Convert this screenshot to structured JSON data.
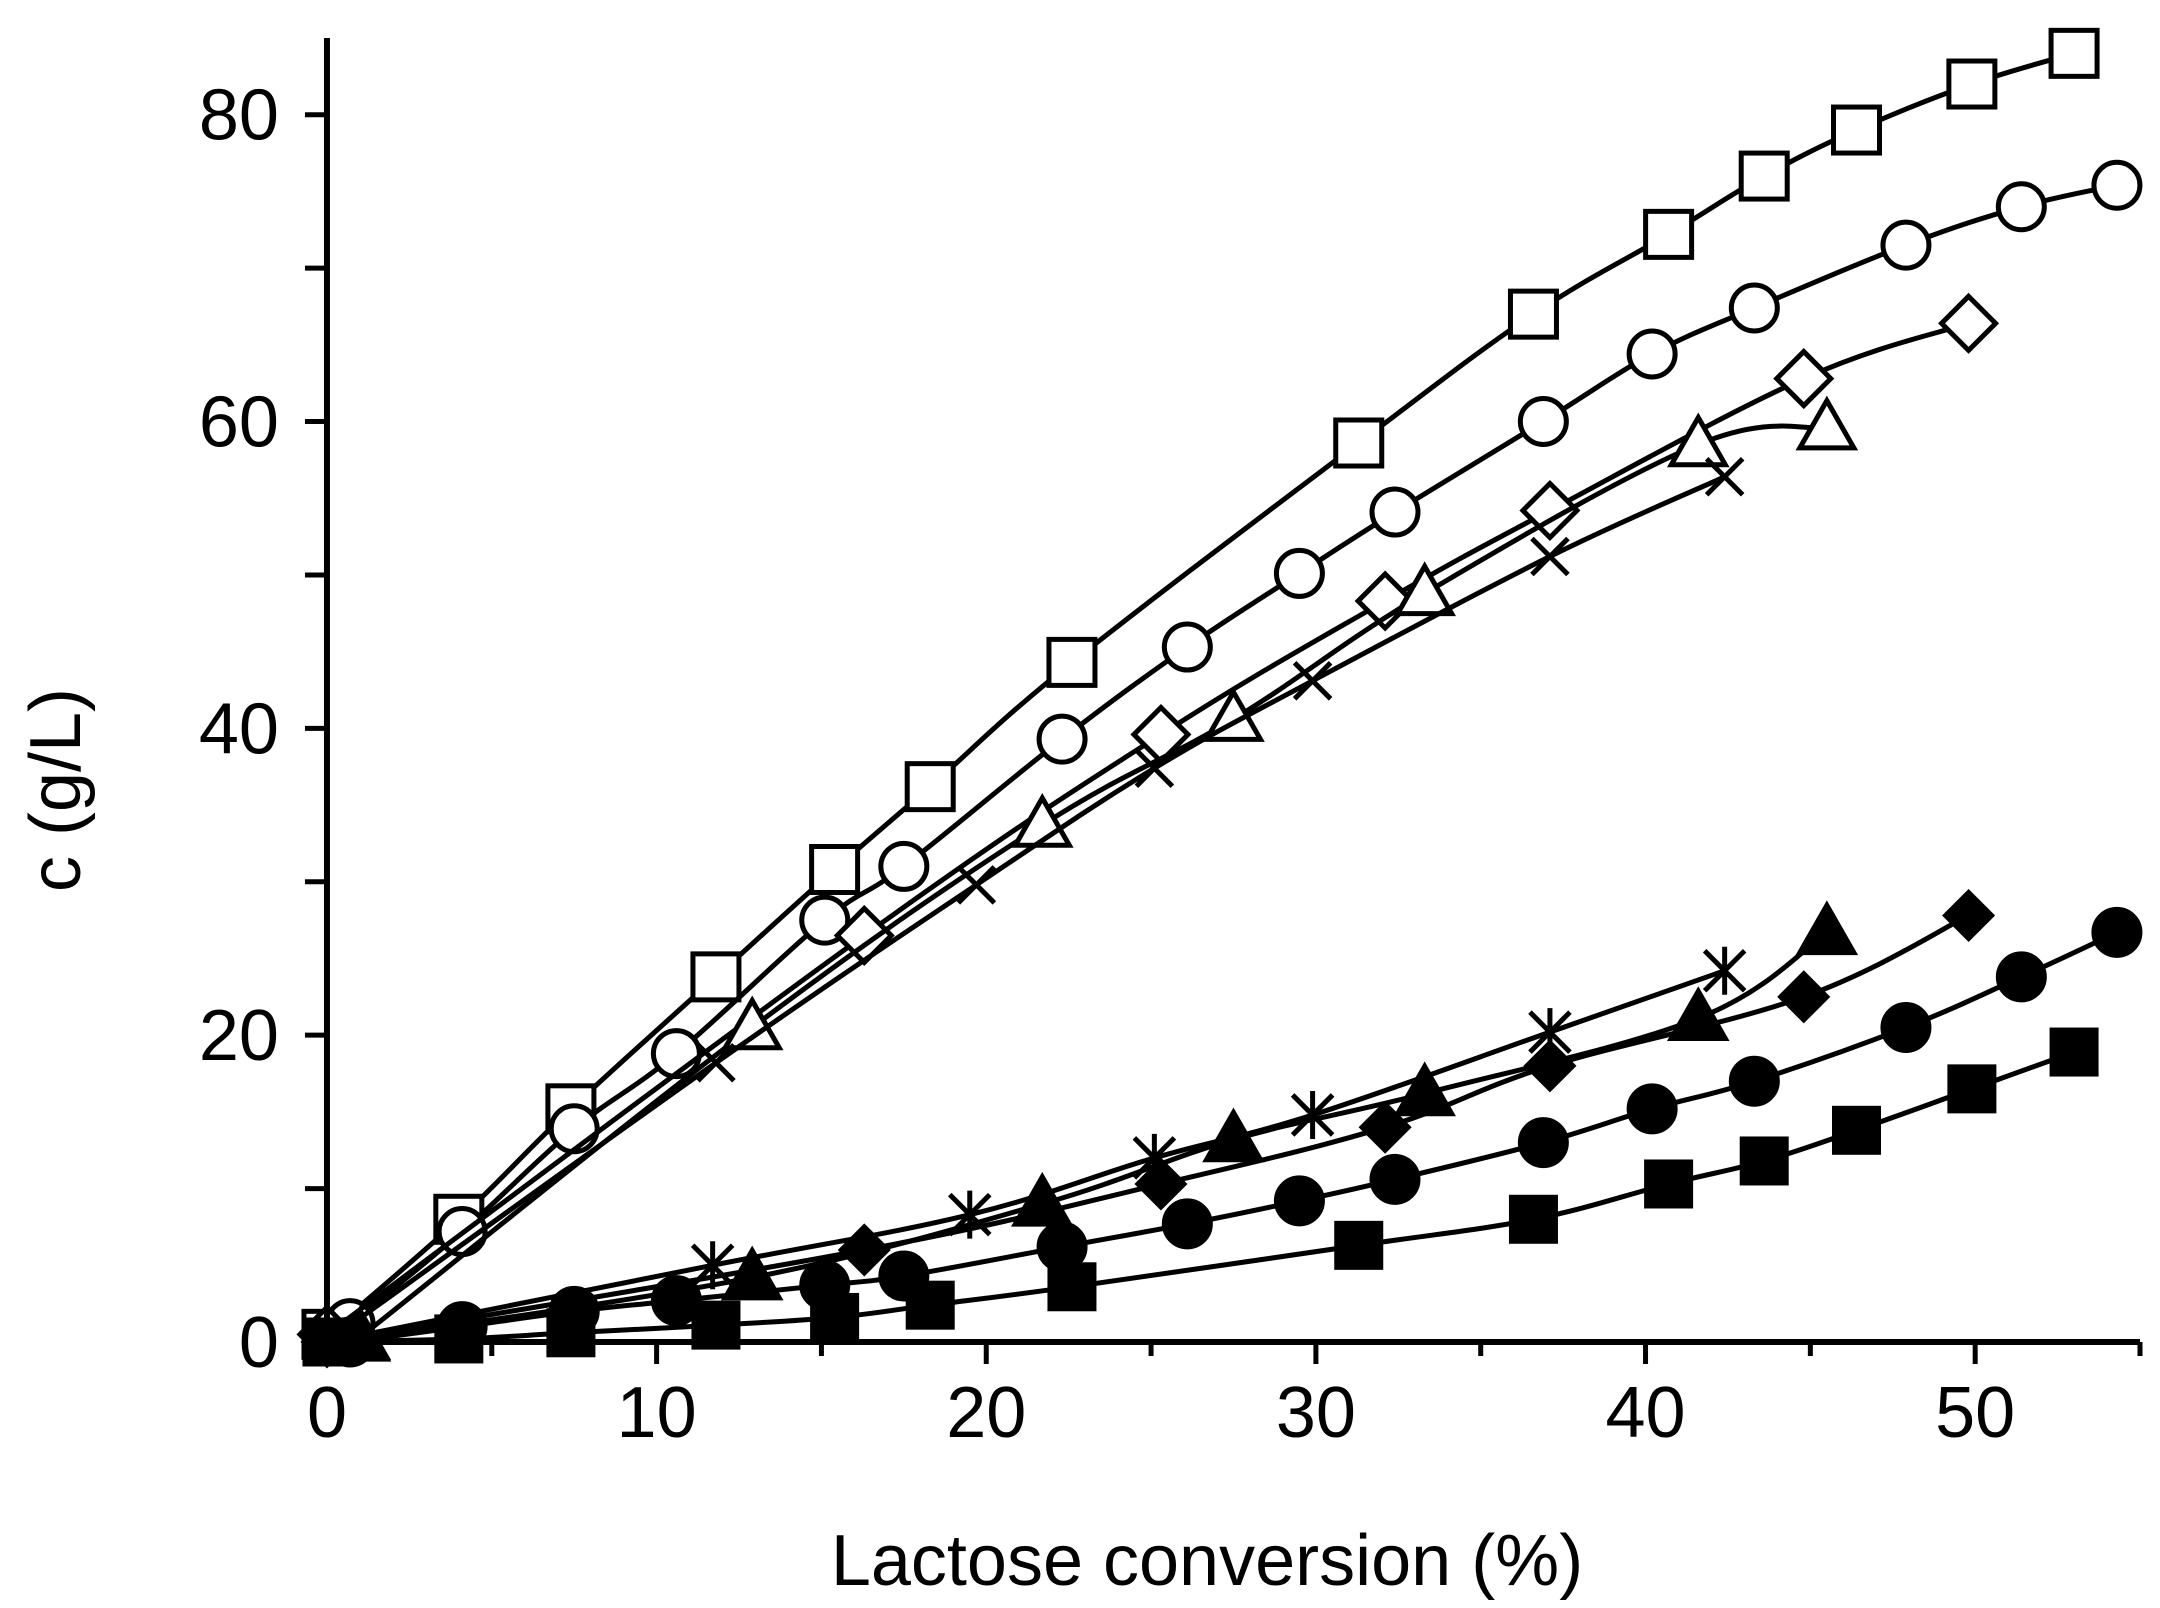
{
  "chart_data": {
    "type": "line",
    "title": "",
    "xlabel": "Lactose conversion (%)",
    "ylabel": "c (g/L)",
    "xlim": [
      -1,
      55
    ],
    "ylim": [
      0,
      85
    ],
    "x_ticks": [
      "0",
      "10",
      "20",
      "30",
      "40",
      "50"
    ],
    "y_ticks": [
      "0",
      "20",
      "40",
      "60",
      "80"
    ],
    "grid": false,
    "legend": "none",
    "colors": {
      "line": "#000000",
      "open_fill": "#ffffff",
      "filled": "#000000"
    },
    "series": [
      {
        "name": "open squares",
        "marker": "square",
        "filled": false,
        "x": [
          0,
          4,
          7.4,
          11.8,
          15.4,
          18.3,
          22.6,
          31.3,
          36.6,
          40.7,
          43.6,
          46.4,
          49.9,
          53
        ],
        "y": [
          0.5,
          8,
          15.2,
          23.8,
          30.8,
          36.2,
          44.3,
          58.6,
          67,
          72.2,
          76,
          79,
          82,
          84
        ]
      },
      {
        "name": "open circles",
        "marker": "circle",
        "filled": false,
        "x": [
          0.7,
          4.1,
          7.5,
          10.6,
          15.1,
          17.5,
          22.3,
          26.1,
          29.5,
          32.4,
          36.9,
          40.2,
          43.3,
          47.9,
          51.4,
          54.3
        ],
        "y": [
          1.2,
          7.2,
          13.9,
          18.8,
          27.5,
          31,
          39.3,
          45.3,
          50.1,
          54.1,
          60,
          64.4,
          67.4,
          71.5,
          74,
          75.4
        ]
      },
      {
        "name": "open diamonds",
        "marker": "diamond",
        "filled": false,
        "x": [
          0,
          16.3,
          25.3,
          32.1,
          37.1,
          44.8,
          49.8
        ],
        "y": [
          0.5,
          26.5,
          39.6,
          48.3,
          54.2,
          62.8,
          66.4
        ]
      },
      {
        "name": "open triangles",
        "marker": "triangle",
        "filled": false,
        "x": [
          1,
          12.9,
          21.7,
          27.5,
          33.3,
          41.6,
          45.5
        ],
        "y": [
          0.3,
          20.5,
          33.7,
          40.6,
          48.8,
          58.5,
          59.6
        ]
      },
      {
        "name": "crosses",
        "marker": "x",
        "filled": false,
        "x": [
          0,
          11.8,
          19.7,
          25.1,
          29.9,
          37.1,
          42.4
        ],
        "y": [
          0,
          18.2,
          29.8,
          37.4,
          43.1,
          51.2,
          56.4
        ]
      },
      {
        "name": "asterisks",
        "marker": "asterisk",
        "filled": true,
        "x": [
          0,
          11.7,
          19.5,
          25.1,
          29.9,
          37.1,
          42.4
        ],
        "y": [
          0,
          5,
          8.3,
          12,
          14.8,
          20.2,
          24.2
        ]
      },
      {
        "name": "filled triangles",
        "marker": "triangle",
        "filled": true,
        "x": [
          1,
          12.9,
          21.7,
          27.5,
          33.3,
          41.6,
          45.5
        ],
        "y": [
          0.2,
          4.2,
          9,
          13.2,
          16.2,
          21.1,
          26.7
        ]
      },
      {
        "name": "filled diamonds",
        "marker": "diamond",
        "filled": true,
        "x": [
          0,
          16.3,
          25.3,
          32.1,
          37.1,
          44.8,
          49.8
        ],
        "y": [
          0,
          6,
          10.3,
          14,
          18,
          22.5,
          27.8
        ]
      },
      {
        "name": "filled circles",
        "marker": "circle",
        "filled": true,
        "x": [
          0.7,
          4.1,
          7.5,
          10.6,
          15.1,
          17.5,
          22.3,
          26.1,
          29.5,
          32.4,
          36.9,
          40.2,
          43.3,
          47.9,
          51.4,
          54.3
        ],
        "y": [
          0,
          1,
          2,
          2.7,
          3.7,
          4.3,
          6.2,
          7.7,
          9.2,
          10.6,
          13,
          15.2,
          17,
          20.5,
          23.8,
          26.7
        ]
      },
      {
        "name": "filled squares",
        "marker": "square",
        "filled": true,
        "x": [
          0,
          4,
          7.4,
          11.8,
          15.4,
          18.3,
          22.6,
          31.3,
          36.6,
          40.7,
          43.6,
          46.4,
          49.9,
          53
        ],
        "y": [
          0,
          0.2,
          0.6,
          1.1,
          1.6,
          2.4,
          3.6,
          6.3,
          8,
          10.3,
          11.8,
          13.8,
          16.5,
          18.9
        ]
      }
    ]
  }
}
